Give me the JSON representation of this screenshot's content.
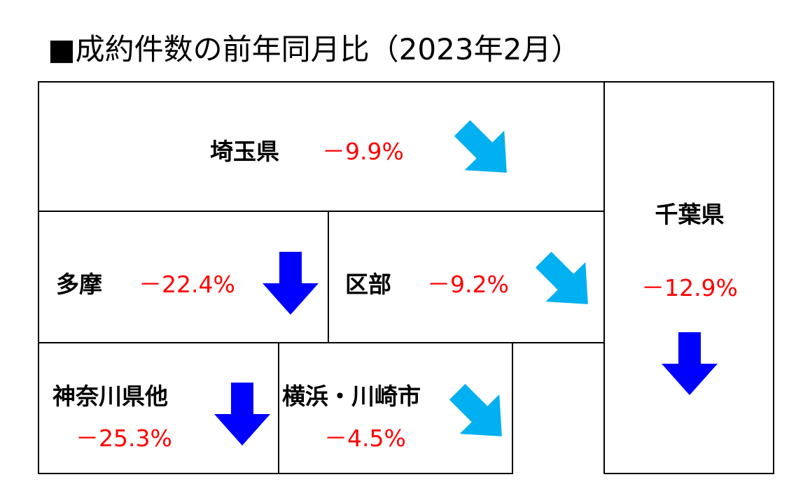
{
  "title": "■成約件数の前年同月比（2023年2月）",
  "regions": [
    {
      "name": "埼玉県",
      "change": "－9.9%"
    },
    {
      "name": "千葉県",
      "change": "－12.9%"
    },
    {
      "name": "多摩",
      "change": "－22.4%"
    },
    {
      "name": "区部",
      "change": "－9.2%"
    },
    {
      "name": "神奈川県他",
      "change": "－25.3%"
    },
    {
      "name": "横浜・川崎市",
      "change": "－4.5%"
    }
  ]
}
